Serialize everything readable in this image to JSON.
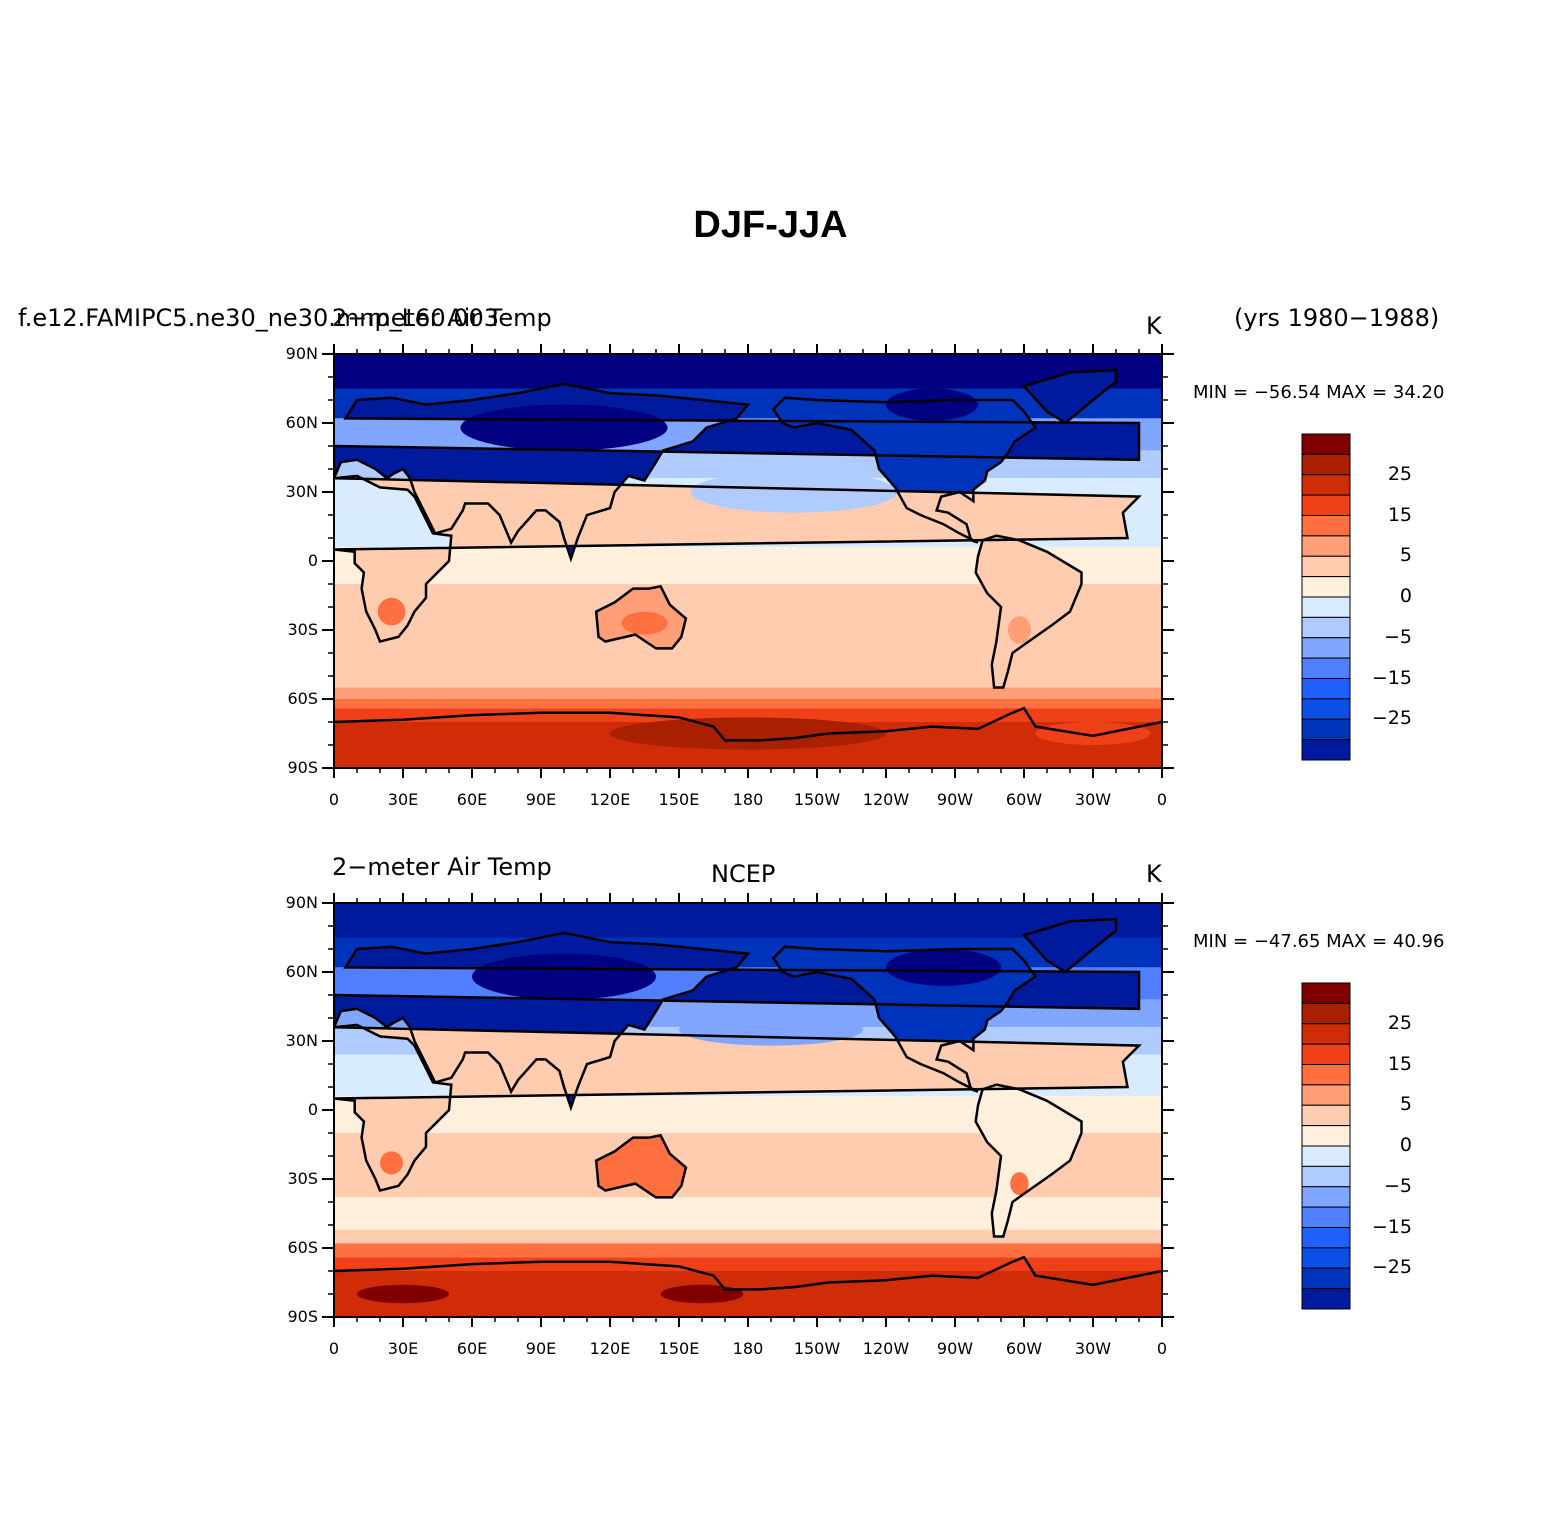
{
  "title": "DJF-JJA",
  "colors": {
    "levels": [
      "#000080",
      "#001a9e",
      "#0033bb",
      "#0d4fe6",
      "#2060ff",
      "#5080ff",
      "#80a6ff",
      "#b0ccff",
      "#d8ebff",
      "#fff0de",
      "#ffccb0",
      "#ff9f78",
      "#ff7040",
      "#f04018",
      "#d02c08",
      "#a82000",
      "#800000"
    ],
    "land_outline": "#000000"
  },
  "colorbar_labels": [
    "25",
    "15",
    "5",
    "0",
    "−5",
    "−15",
    "−25"
  ],
  "x_ticks": [
    "0",
    "30E",
    "60E",
    "90E",
    "120E",
    "150E",
    "180",
    "150W",
    "120W",
    "90W",
    "60W",
    "30W",
    "0"
  ],
  "y_ticks": [
    "90N",
    "60N",
    "30N",
    "0",
    "30S",
    "60S",
    "90S"
  ],
  "panels": [
    {
      "left_title": "f.e12.FAMIPC5.ne30_ne30.mnp_L60.003",
      "left_title_2": "2−meter Air Temp",
      "center_title": "",
      "units": "K",
      "years": "(yrs  1980−1988)",
      "min_max": "MIN = −56.54  MAX =  34.20"
    },
    {
      "left_title": "2−meter Air Temp",
      "left_title_2": "",
      "center_title": "NCEP",
      "units": "K",
      "years": "",
      "min_max": "MIN = −47.65  MAX =  40.96"
    }
  ],
  "chart_data": {
    "type": "heatmap",
    "title": "DJF-JJA",
    "xlim": [
      0,
      360
    ],
    "ylim": [
      -90,
      90
    ],
    "contour_levels": [
      -30,
      -25,
      -20,
      -15,
      -10,
      -5,
      -2,
      0,
      2,
      5,
      10,
      15,
      20,
      25,
      30
    ],
    "panels": [
      {
        "name": "f.e12.FAMIPC5.ne30_ne30.mnp_L60.003",
        "min": -56.54,
        "max": 34.2
      },
      {
        "name": "NCEP",
        "min": -47.65,
        "max": 40.96
      }
    ]
  }
}
